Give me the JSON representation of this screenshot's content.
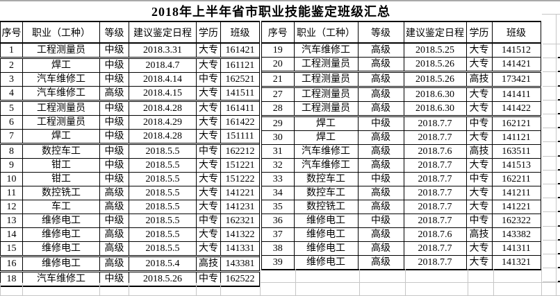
{
  "title": "2018年上半年省市职业技能鉴定班级汇总",
  "headers": [
    "序号",
    "职业（工种）",
    "等级",
    "建议鉴定日程",
    "学历",
    "班级"
  ],
  "left_table": {
    "rows": [
      [
        "1",
        "工程测量员",
        "中级",
        "2018.3.31",
        "大专",
        "161421"
      ],
      [
        "2",
        "焊工",
        "中级",
        "2018.4.7",
        "大专",
        "161121"
      ],
      [
        "3",
        "汽车维修工",
        "中级",
        "2018.4.14",
        "中专",
        "162521"
      ],
      [
        "4",
        "汽车维修工",
        "高级",
        "2018.4.15",
        "大专",
        "141511"
      ],
      [
        "5",
        "工程测量员",
        "中级",
        "2018.4.28",
        "大专",
        "161411"
      ],
      [
        "6",
        "工程测量员",
        "中级",
        "2018.4.29",
        "大专",
        "161422"
      ],
      [
        "7",
        "焊工",
        "中级",
        "2018.4.28",
        "大专",
        "151111"
      ],
      [
        "8",
        "数控车工",
        "中级",
        "2018.5.5",
        "中专",
        "162212"
      ],
      [
        "9",
        "钳工",
        "中级",
        "2018.5.5",
        "大专",
        "151221"
      ],
      [
        "10",
        "钳工",
        "中级",
        "2018.5.5",
        "大专",
        "151222"
      ],
      [
        "11",
        "数控铣工",
        "高级",
        "2018.5.5",
        "大专",
        "141221"
      ],
      [
        "12",
        "车工",
        "高级",
        "2018.5.5",
        "大专",
        "141231"
      ],
      [
        "13",
        "维修电工",
        "中级",
        "2018.5.5",
        "中专",
        "162321"
      ],
      [
        "14",
        "维修电工",
        "高级",
        "2018.5.5",
        "大专",
        "141322"
      ],
      [
        "15",
        "维修电工",
        "高级",
        "2018.5.5",
        "大专",
        "141331"
      ],
      [
        "16",
        "维修电工",
        "高级",
        "2018.5.4",
        "高技",
        "143381"
      ],
      [
        "18",
        "汽车维修工",
        "中级",
        "2018.5.26",
        "中专",
        "162522"
      ]
    ]
  },
  "right_table": {
    "rows": [
      [
        "19",
        "汽车维修工",
        "高级",
        "2018.5.25",
        "大专",
        "141512"
      ],
      [
        "20",
        "工程测量员",
        "高级",
        "2018.5.26",
        "大专",
        "141421"
      ],
      [
        "21",
        "工程测量员",
        "高级",
        "2018.5.26",
        "高技",
        "173421"
      ],
      [
        "27",
        "工程测量员",
        "高级",
        "2018.6.30",
        "大专",
        "141411"
      ],
      [
        "28",
        "工程测量员",
        "高级",
        "2018.6.30",
        "大专",
        "141422"
      ],
      [
        "29",
        "焊工",
        "中级",
        "2018.7.7",
        "中专",
        "162121"
      ],
      [
        "30",
        "焊工",
        "高级",
        "2018.7.7",
        "大专",
        "141121"
      ],
      [
        "31",
        "汽车维修工",
        "高级",
        "2018.7.6",
        "高技",
        "163511"
      ],
      [
        "32",
        "汽车维修工",
        "高级",
        "2018.7.7",
        "大专",
        "141513"
      ],
      [
        "33",
        "数控车工",
        "中级",
        "2018.7.7",
        "中专",
        "162211"
      ],
      [
        "34",
        "数控车工",
        "高级",
        "2018.7.7",
        "大专",
        "141211"
      ],
      [
        "35",
        "数控铣工",
        "高级",
        "2018.7.7",
        "大专",
        "141221"
      ],
      [
        "36",
        "维修电工",
        "中级",
        "2018.7.7",
        "中专",
        "162322"
      ],
      [
        "37",
        "维修电工",
        "高级",
        "2018.7.6",
        "高技",
        "143382"
      ],
      [
        "38",
        "维修电工",
        "高级",
        "2018.7.7",
        "大专",
        "141311"
      ],
      [
        "39",
        "维修电工",
        "高级",
        "2018.7.7",
        "大专",
        "141321"
      ]
    ]
  },
  "colors": {
    "border": "#000000",
    "gridline": "#c6c6c6",
    "background": "#ffffff",
    "top_strip": "#a8a8a8",
    "text": "#000000"
  }
}
